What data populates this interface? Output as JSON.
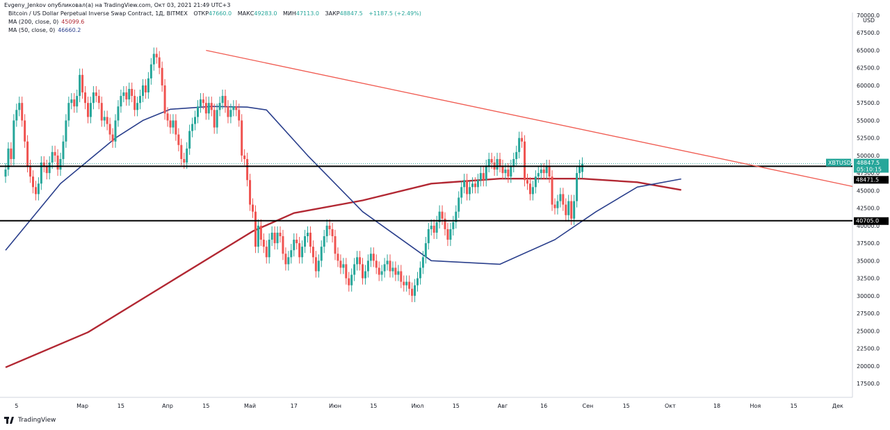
{
  "header": {
    "publisher_line": "Evgeny_Jenkov опубликовал(а) на TradingView.com, Окт 03, 2021 21:49 UTC+3",
    "instrument": "Bitcoin / US Dollar Perpetual Inverse Swap Contract, 1Д, BITMEX",
    "open_label": "ОТКР",
    "open_value": "47660.0",
    "high_label": "МАКС",
    "high_value": "49283.0",
    "low_label": "МИН",
    "low_value": "47113.0",
    "close_label": "ЗАКР",
    "close_value": "48847.5",
    "change": "+1187.5 (+2.49%)"
  },
  "legend": [
    {
      "label": "MA (200, close, 0)",
      "value": "45099.6",
      "color": "#b22833"
    },
    {
      "label": "MA (50, close, 0)",
      "value": "46660.2",
      "color": "#2a3f8c"
    }
  ],
  "footer": {
    "brand": "TradingView"
  },
  "colors": {
    "up": "#26a69a",
    "down": "#ef5350",
    "trendline": "#f05a50",
    "ma200": "#b22833",
    "ma50": "#2a3f8c",
    "hline": "#000000"
  },
  "chart_data": {
    "type": "candlestick",
    "symbol_tag": "XBTUSD",
    "price_tag": "48847.5",
    "countdown_tag": "05:10:15",
    "ma50_tag": "48471.5",
    "support_tag": "40705.0",
    "y_ticks": [
      "70000.0",
      "67500.0",
      "65000.0",
      "62500.0",
      "60000.0",
      "57500.0",
      "55000.0",
      "52500.0",
      "50000.0",
      "47500.0",
      "45000.0",
      "42500.0",
      "40000.0",
      "37500.0",
      "35000.0",
      "32500.0",
      "30000.0",
      "27500.0",
      "25000.0",
      "22500.0",
      "20000.0",
      "17500.0"
    ],
    "y_tick_values": [
      70000,
      67500,
      65000,
      62500,
      60000,
      57500,
      55000,
      52500,
      50000,
      47500,
      45000,
      42500,
      40000,
      37500,
      35000,
      32500,
      30000,
      27500,
      25000,
      22500,
      20000,
      17500
    ],
    "currency_label": "USD",
    "x_ticks": [
      {
        "label": "5",
        "day": 4
      },
      {
        "label": "Мар",
        "day": 28
      },
      {
        "label": "15",
        "day": 42
      },
      {
        "label": "Апр",
        "day": 59
      },
      {
        "label": "15",
        "day": 73
      },
      {
        "label": "Май",
        "day": 89
      },
      {
        "label": "17",
        "day": 105
      },
      {
        "label": "Июн",
        "day": 120
      },
      {
        "label": "15",
        "day": 134
      },
      {
        "label": "Июл",
        "day": 150
      },
      {
        "label": "15",
        "day": 164
      },
      {
        "label": "Авг",
        "day": 181
      },
      {
        "label": "16",
        "day": 196
      },
      {
        "label": "Сен",
        "day": 212
      },
      {
        "label": "15",
        "day": 226
      },
      {
        "label": "Окт",
        "day": 242
      },
      {
        "label": "18",
        "day": 259
      },
      {
        "label": "Ноя",
        "day": 273
      },
      {
        "label": "15",
        "day": 287
      },
      {
        "label": "Дек",
        "day": 303
      }
    ],
    "horizontal_levels": [
      48471.5,
      40705.0
    ],
    "trendline": {
      "from": {
        "day": 73,
        "price": 65000
      },
      "to": {
        "day": 313,
        "price": 45600
      }
    },
    "ma200": [
      [
        0,
        19800
      ],
      [
        30,
        24800
      ],
      [
        60,
        32000
      ],
      [
        90,
        39200
      ],
      [
        105,
        41800
      ],
      [
        130,
        43600
      ],
      [
        155,
        46000
      ],
      [
        180,
        46700
      ],
      [
        210,
        46700
      ],
      [
        230,
        46200
      ],
      [
        246,
        45100
      ]
    ],
    "ma50": [
      [
        0,
        36500
      ],
      [
        20,
        46000
      ],
      [
        40,
        52500
      ],
      [
        50,
        55000
      ],
      [
        60,
        56600
      ],
      [
        75,
        57000
      ],
      [
        88,
        56900
      ],
      [
        95,
        56500
      ],
      [
        110,
        50000
      ],
      [
        130,
        42000
      ],
      [
        155,
        35000
      ],
      [
        180,
        34500
      ],
      [
        200,
        38000
      ],
      [
        215,
        42000
      ],
      [
        230,
        45500
      ],
      [
        246,
        46660
      ]
    ],
    "candles": [
      {
        "o": 47000,
        "c": 48000
      },
      {
        "o": 48000,
        "c": 51000
      },
      {
        "o": 51000,
        "c": 49500
      },
      {
        "o": 49500,
        "c": 55000
      },
      {
        "o": 55000,
        "c": 56500
      },
      {
        "o": 56500,
        "c": 57500
      },
      {
        "o": 57500,
        "c": 55000
      },
      {
        "o": 55000,
        "c": 52000
      },
      {
        "o": 52000,
        "c": 48500
      },
      {
        "o": 48500,
        "c": 47000
      },
      {
        "o": 47000,
        "c": 45500
      },
      {
        "o": 45500,
        "c": 44500
      },
      {
        "o": 44500,
        "c": 46000
      },
      {
        "o": 46000,
        "c": 49000
      },
      {
        "o": 49000,
        "c": 48500
      },
      {
        "o": 48500,
        "c": 47500
      },
      {
        "o": 47500,
        "c": 49000
      },
      {
        "o": 49000,
        "c": 50500
      },
      {
        "o": 50500,
        "c": 50000
      },
      {
        "o": 50000,
        "c": 48000
      },
      {
        "o": 48000,
        "c": 49500
      },
      {
        "o": 49500,
        "c": 52000
      },
      {
        "o": 52000,
        "c": 55000
      },
      {
        "o": 55000,
        "c": 57500
      },
      {
        "o": 57500,
        "c": 58000
      },
      {
        "o": 58000,
        "c": 57000
      },
      {
        "o": 57000,
        "c": 58500
      },
      {
        "o": 58500,
        "c": 61500
      },
      {
        "o": 61500,
        "c": 59000
      },
      {
        "o": 59000,
        "c": 57500
      },
      {
        "o": 57500,
        "c": 55500
      },
      {
        "o": 55500,
        "c": 57500
      },
      {
        "o": 57500,
        "c": 59000
      },
      {
        "o": 59000,
        "c": 58500
      },
      {
        "o": 58500,
        "c": 57500
      },
      {
        "o": 57500,
        "c": 55000
      },
      {
        "o": 55000,
        "c": 55500
      },
      {
        "o": 55500,
        "c": 54500
      },
      {
        "o": 54500,
        "c": 53000
      },
      {
        "o": 53000,
        "c": 52000
      },
      {
        "o": 52000,
        "c": 55000
      },
      {
        "o": 55000,
        "c": 57000
      },
      {
        "o": 57000,
        "c": 58500
      },
      {
        "o": 58500,
        "c": 59000
      },
      {
        "o": 59000,
        "c": 58000
      },
      {
        "o": 58000,
        "c": 59500
      },
      {
        "o": 59500,
        "c": 58500
      },
      {
        "o": 58500,
        "c": 56500
      },
      {
        "o": 56500,
        "c": 57500
      },
      {
        "o": 57500,
        "c": 58500
      },
      {
        "o": 58500,
        "c": 60000
      },
      {
        "o": 60000,
        "c": 59000
      },
      {
        "o": 59000,
        "c": 61000
      },
      {
        "o": 61000,
        "c": 63000
      },
      {
        "o": 63000,
        "c": 64500
      },
      {
        "o": 64500,
        "c": 64000
      },
      {
        "o": 64000,
        "c": 62500
      },
      {
        "o": 62500,
        "c": 60000
      },
      {
        "o": 60000,
        "c": 56000
      },
      {
        "o": 56000,
        "c": 55000
      },
      {
        "o": 55000,
        "c": 54000
      },
      {
        "o": 54000,
        "c": 55000
      },
      {
        "o": 55000,
        "c": 53000
      },
      {
        "o": 53000,
        "c": 51500
      },
      {
        "o": 51500,
        "c": 49500
      },
      {
        "o": 49500,
        "c": 49000
      },
      {
        "o": 49000,
        "c": 51000
      },
      {
        "o": 51000,
        "c": 53500
      },
      {
        "o": 53500,
        "c": 54500
      },
      {
        "o": 54500,
        "c": 55500
      },
      {
        "o": 55500,
        "c": 57000
      },
      {
        "o": 57000,
        "c": 58000
      },
      {
        "o": 58000,
        "c": 57500
      },
      {
        "o": 57500,
        "c": 56000
      },
      {
        "o": 56000,
        "c": 57500
      },
      {
        "o": 57500,
        "c": 56500
      },
      {
        "o": 56500,
        "c": 54000
      },
      {
        "o": 54000,
        "c": 56500
      },
      {
        "o": 56500,
        "c": 57500
      },
      {
        "o": 57500,
        "c": 58500
      },
      {
        "o": 58500,
        "c": 57000
      },
      {
        "o": 57000,
        "c": 55500
      },
      {
        "o": 55500,
        "c": 56500
      },
      {
        "o": 56500,
        "c": 57000
      },
      {
        "o": 57000,
        "c": 56500
      },
      {
        "o": 56500,
        "c": 55000
      },
      {
        "o": 55000,
        "c": 50000
      },
      {
        "o": 50000,
        "c": 49500
      },
      {
        "o": 49500,
        "c": 46500
      },
      {
        "o": 46500,
        "c": 43000
      },
      {
        "o": 43000,
        "c": 42000
      },
      {
        "o": 42000,
        "c": 37000
      },
      {
        "o": 37000,
        "c": 40000
      },
      {
        "o": 40000,
        "c": 38000
      },
      {
        "o": 38000,
        "c": 37000
      },
      {
        "o": 37000,
        "c": 35500
      },
      {
        "o": 35500,
        "c": 38000
      },
      {
        "o": 38000,
        "c": 39000
      },
      {
        "o": 39000,
        "c": 37500
      },
      {
        "o": 37500,
        "c": 39000
      },
      {
        "o": 39000,
        "c": 38500
      },
      {
        "o": 38500,
        "c": 36000
      },
      {
        "o": 36000,
        "c": 34500
      },
      {
        "o": 34500,
        "c": 35500
      },
      {
        "o": 35500,
        "c": 36500
      },
      {
        "o": 36500,
        "c": 38000
      },
      {
        "o": 38000,
        "c": 37500
      },
      {
        "o": 37500,
        "c": 35500
      },
      {
        "o": 35500,
        "c": 37000
      },
      {
        "o": 37000,
        "c": 38500
      },
      {
        "o": 38500,
        "c": 39000
      },
      {
        "o": 39000,
        "c": 37000
      },
      {
        "o": 37000,
        "c": 35500
      },
      {
        "o": 35500,
        "c": 33500
      },
      {
        "o": 33500,
        "c": 35000
      },
      {
        "o": 35000,
        "c": 37000
      },
      {
        "o": 37000,
        "c": 38500
      },
      {
        "o": 38500,
        "c": 40000
      },
      {
        "o": 40000,
        "c": 39500
      },
      {
        "o": 39500,
        "c": 38500
      },
      {
        "o": 38500,
        "c": 36000
      },
      {
        "o": 36000,
        "c": 35000
      },
      {
        "o": 35000,
        "c": 34000
      },
      {
        "o": 34000,
        "c": 34500
      },
      {
        "o": 34500,
        "c": 32500
      },
      {
        "o": 32500,
        "c": 31500
      },
      {
        "o": 31500,
        "c": 33000
      },
      {
        "o": 33000,
        "c": 34500
      },
      {
        "o": 34500,
        "c": 35500
      },
      {
        "o": 35500,
        "c": 34500
      },
      {
        "o": 34500,
        "c": 32500
      },
      {
        "o": 32500,
        "c": 33500
      },
      {
        "o": 33500,
        "c": 35000
      },
      {
        "o": 35000,
        "c": 36000
      },
      {
        "o": 36000,
        "c": 35000
      },
      {
        "o": 35000,
        "c": 34000
      },
      {
        "o": 34000,
        "c": 33000
      },
      {
        "o": 33000,
        "c": 33500
      },
      {
        "o": 33500,
        "c": 34500
      },
      {
        "o": 34500,
        "c": 35000
      },
      {
        "o": 35000,
        "c": 33500
      },
      {
        "o": 33500,
        "c": 34000
      },
      {
        "o": 34000,
        "c": 33000
      },
      {
        "o": 33000,
        "c": 33500
      },
      {
        "o": 33500,
        "c": 32000
      },
      {
        "o": 32000,
        "c": 31500
      },
      {
        "o": 31500,
        "c": 32000
      },
      {
        "o": 32000,
        "c": 31000
      },
      {
        "o": 31000,
        "c": 30000
      },
      {
        "o": 30000,
        "c": 31500
      },
      {
        "o": 31500,
        "c": 32500
      },
      {
        "o": 32500,
        "c": 34000
      },
      {
        "o": 34000,
        "c": 35500
      },
      {
        "o": 35500,
        "c": 37500
      },
      {
        "o": 37500,
        "c": 39500
      },
      {
        "o": 39500,
        "c": 40000
      },
      {
        "o": 40000,
        "c": 39000
      },
      {
        "o": 39000,
        "c": 40500
      },
      {
        "o": 40500,
        "c": 42000
      },
      {
        "o": 42000,
        "c": 41000
      },
      {
        "o": 41000,
        "c": 39500
      },
      {
        "o": 39500,
        "c": 38000
      },
      {
        "o": 38000,
        "c": 39500
      },
      {
        "o": 39500,
        "c": 40500
      },
      {
        "o": 40500,
        "c": 42000
      },
      {
        "o": 42000,
        "c": 44000
      },
      {
        "o": 44000,
        "c": 45500
      },
      {
        "o": 45500,
        "c": 46500
      },
      {
        "o": 46500,
        "c": 44500
      },
      {
        "o": 44500,
        "c": 45500
      },
      {
        "o": 45500,
        "c": 46000
      },
      {
        "o": 46000,
        "c": 45500
      },
      {
        "o": 45500,
        "c": 46500
      },
      {
        "o": 46500,
        "c": 47500
      },
      {
        "o": 47500,
        "c": 46500
      },
      {
        "o": 46500,
        "c": 48500
      },
      {
        "o": 48500,
        "c": 49500
      },
      {
        "o": 49500,
        "c": 49000
      },
      {
        "o": 49000,
        "c": 48000
      },
      {
        "o": 48000,
        "c": 49500
      },
      {
        "o": 49500,
        "c": 48500
      },
      {
        "o": 48500,
        "c": 47500
      },
      {
        "o": 47500,
        "c": 48000
      },
      {
        "o": 48000,
        "c": 47000
      },
      {
        "o": 47000,
        "c": 48500
      },
      {
        "o": 48500,
        "c": 49500
      },
      {
        "o": 49500,
        "c": 50500
      },
      {
        "o": 50500,
        "c": 52500
      },
      {
        "o": 52500,
        "c": 52000
      },
      {
        "o": 52000,
        "c": 46500
      },
      {
        "o": 46500,
        "c": 46000
      },
      {
        "o": 46000,
        "c": 44500
      },
      {
        "o": 44500,
        "c": 45500
      },
      {
        "o": 45500,
        "c": 47000
      },
      {
        "o": 47000,
        "c": 47500
      },
      {
        "o": 47500,
        "c": 48000
      },
      {
        "o": 48000,
        "c": 47500
      },
      {
        "o": 47500,
        "c": 48500
      },
      {
        "o": 48500,
        "c": 47000
      },
      {
        "o": 47000,
        "c": 43000
      },
      {
        "o": 43000,
        "c": 42500
      },
      {
        "o": 42500,
        "c": 43500
      },
      {
        "o": 43500,
        "c": 44500
      },
      {
        "o": 44500,
        "c": 43000
      },
      {
        "o": 43000,
        "c": 41500
      },
      {
        "o": 41500,
        "c": 43500
      },
      {
        "o": 43500,
        "c": 41000
      },
      {
        "o": 41000,
        "c": 43500
      },
      {
        "o": 43500,
        "c": 47500
      },
      {
        "o": 47500,
        "c": 48500
      },
      {
        "o": 47660,
        "c": 48847.5
      }
    ]
  }
}
